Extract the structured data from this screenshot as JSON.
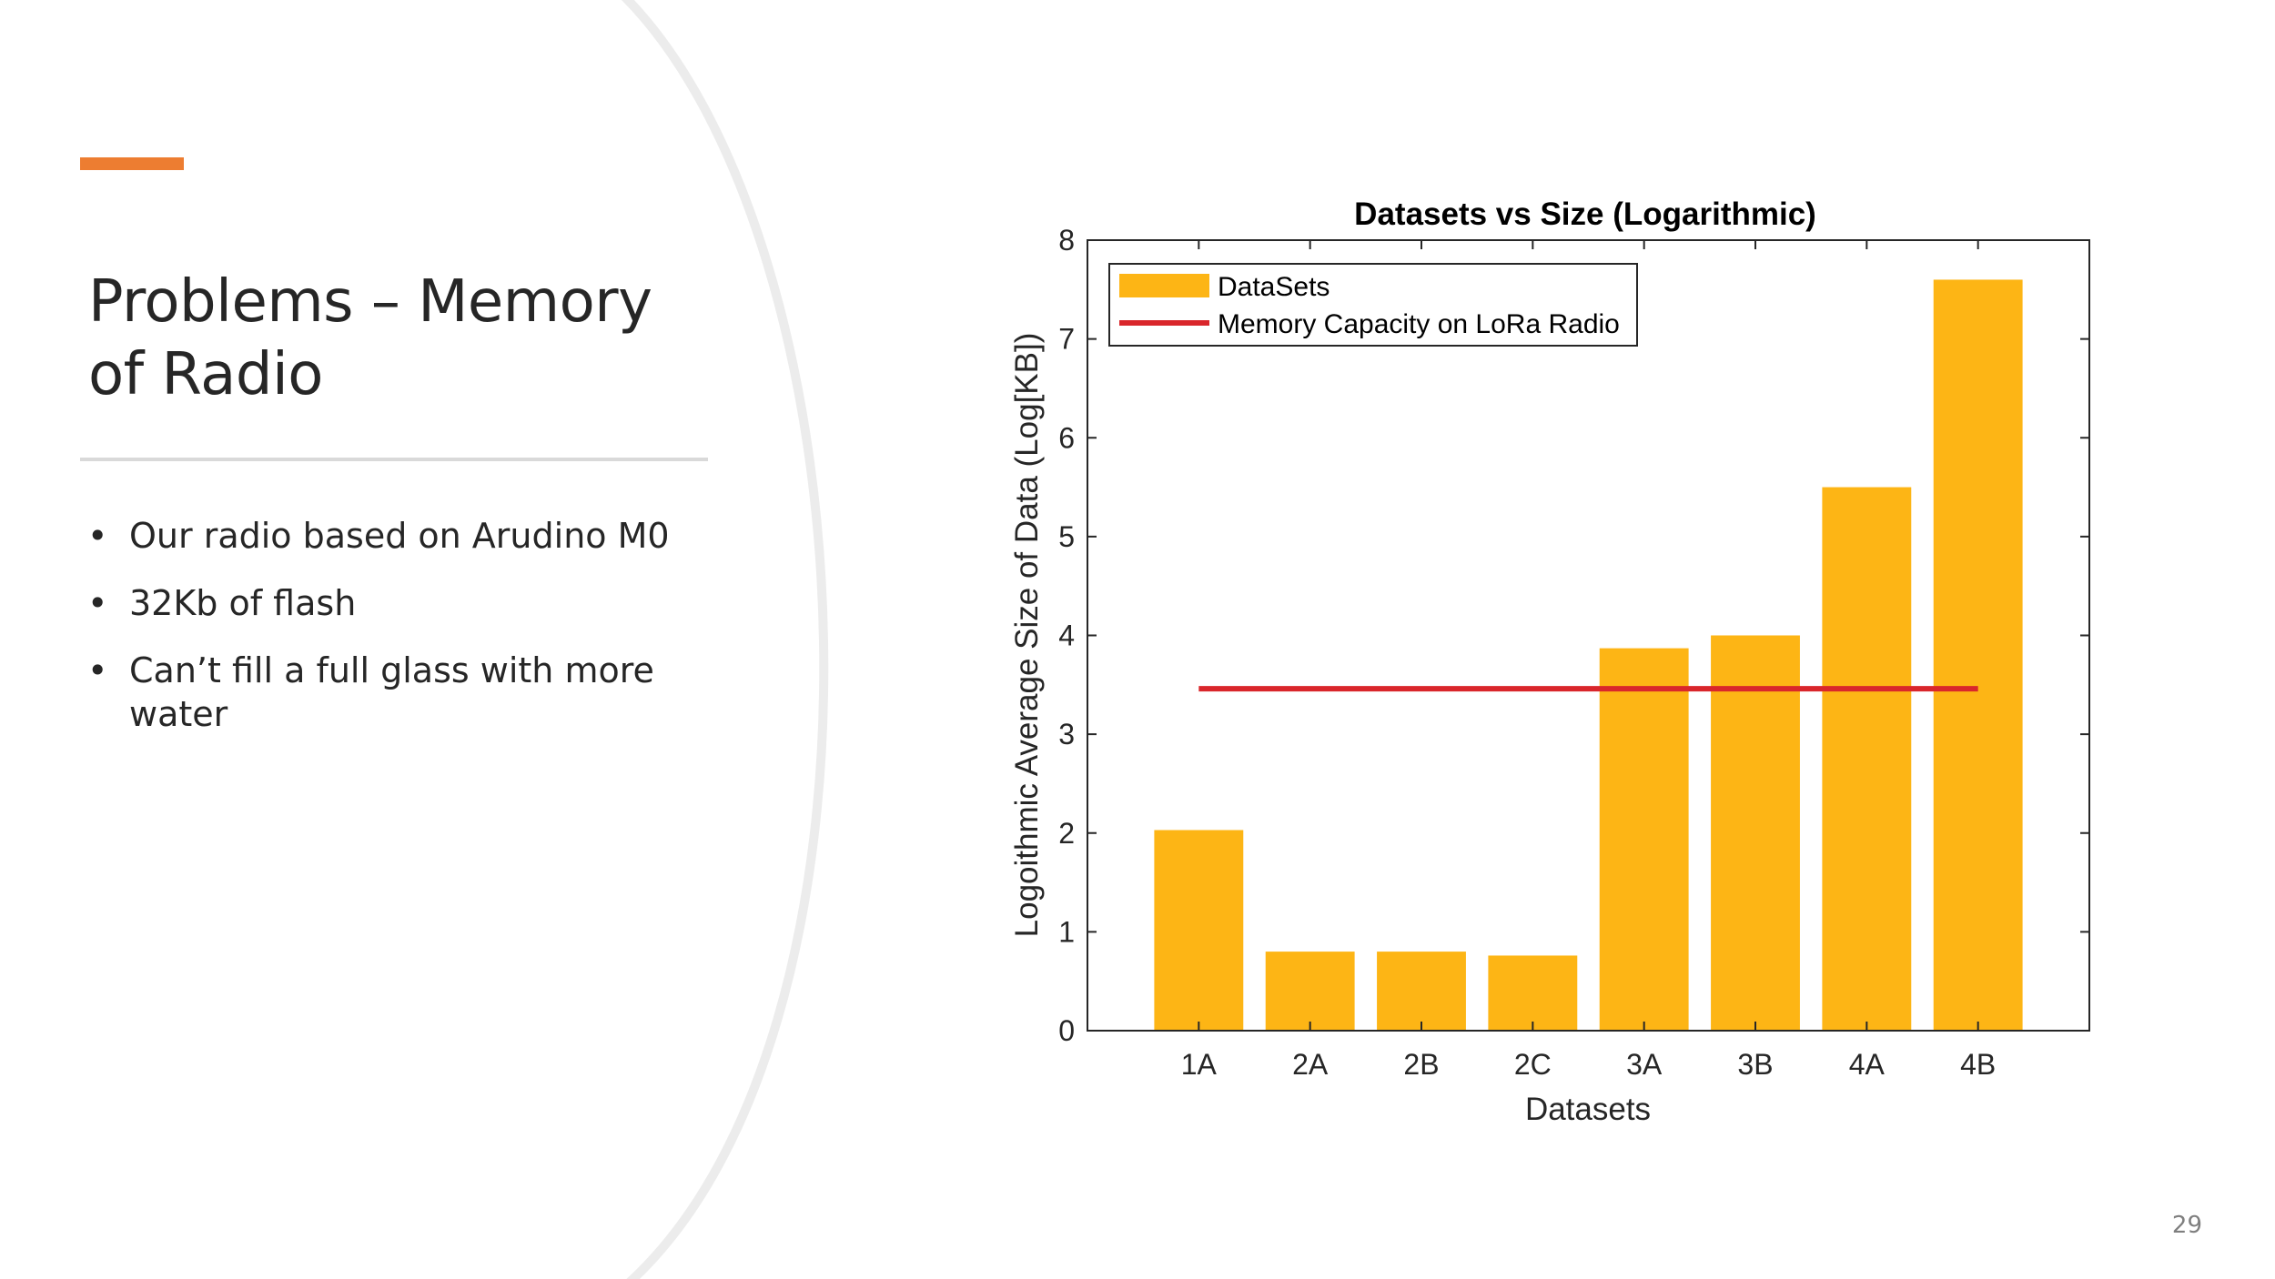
{
  "slide": {
    "title": "Problems – Memory of Radio",
    "accent_color": "#ED7D31",
    "bullets": [
      "Our radio based on Arudino M0",
      "32Kb of flash",
      "Can’t fill a full glass with more water"
    ],
    "bullet_symbol": "•",
    "page_number": "29"
  },
  "chart_data": {
    "type": "bar",
    "title": "Datasets vs Size (Logarithmic)",
    "xlabel": "Datasets",
    "ylabel": "Logoithmic Average Size of Data (Log[KB])",
    "categories": [
      "1A",
      "2A",
      "2B",
      "2C",
      "3A",
      "3B",
      "4A",
      "4B"
    ],
    "series": [
      {
        "name": "DataSets",
        "values": [
          2.03,
          0.8,
          0.8,
          0.76,
          3.87,
          4.0,
          5.5,
          7.6
        ],
        "color": "#FDB515"
      }
    ],
    "reference_line": {
      "name": "Memory Capacity on LoRa Radio",
      "value": 3.46,
      "from_category": "1A",
      "to_category": "4B",
      "color": "#D9262B"
    },
    "ylim": [
      0,
      8
    ],
    "yticks": [
      0,
      1,
      2,
      3,
      4,
      5,
      6,
      7,
      8
    ],
    "legend_position": "top-left",
    "grid": false
  }
}
